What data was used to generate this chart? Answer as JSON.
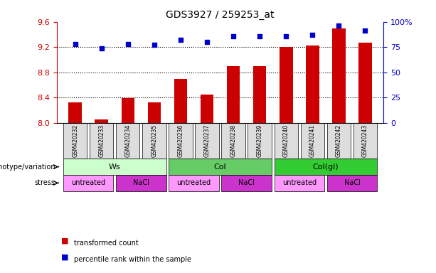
{
  "title": "GDS3927 / 259253_at",
  "samples": [
    "GSM420232",
    "GSM420233",
    "GSM420234",
    "GSM420235",
    "GSM420236",
    "GSM420237",
    "GSM420238",
    "GSM420239",
    "GSM420240",
    "GSM420241",
    "GSM420242",
    "GSM420243"
  ],
  "transformed_count": [
    8.32,
    8.05,
    8.39,
    8.32,
    8.7,
    8.45,
    8.9,
    8.9,
    9.2,
    9.22,
    9.5,
    9.27
  ],
  "percentile_rank": [
    78,
    74,
    78,
    77,
    82,
    80,
    86,
    86,
    86,
    87,
    96,
    91
  ],
  "ylim_left": [
    8.0,
    9.6
  ],
  "ylim_right": [
    0,
    100
  ],
  "yticks_left": [
    8.0,
    8.4,
    8.8,
    9.2,
    9.6
  ],
  "yticks_right": [
    0,
    25,
    50,
    75,
    100
  ],
  "bar_color": "#cc0000",
  "dot_color": "#0000cc",
  "bar_width": 0.5,
  "genotype_groups": [
    {
      "label": "Ws",
      "start": 0,
      "end": 3,
      "color": "#ccffcc"
    },
    {
      "label": "Col",
      "start": 4,
      "end": 7,
      "color": "#66cc66"
    },
    {
      "label": "Col(gl)",
      "start": 8,
      "end": 11,
      "color": "#33cc33"
    }
  ],
  "stress_groups": [
    {
      "label": "untreated",
      "start": 0,
      "end": 1,
      "color": "#ff99ff"
    },
    {
      "label": "NaCl",
      "start": 2,
      "end": 3,
      "color": "#cc33cc"
    },
    {
      "label": "untreated",
      "start": 4,
      "end": 5,
      "color": "#ff99ff"
    },
    {
      "label": "NaCl",
      "start": 6,
      "end": 7,
      "color": "#cc33cc"
    },
    {
      "label": "untreated",
      "start": 8,
      "end": 9,
      "color": "#ff99ff"
    },
    {
      "label": "NaCl",
      "start": 10,
      "end": 11,
      "color": "#cc33cc"
    }
  ],
  "legend_items": [
    {
      "label": "transformed count",
      "color": "#cc0000"
    },
    {
      "label": "percentile rank within the sample",
      "color": "#0000cc"
    }
  ],
  "genotype_label": "genotype/variation",
  "stress_label": "stress",
  "tick_label_color": "#555555",
  "left_axis_color": "#cc0000",
  "right_axis_color": "#0000cc",
  "grid_color": "black",
  "grid_style": "dotted"
}
